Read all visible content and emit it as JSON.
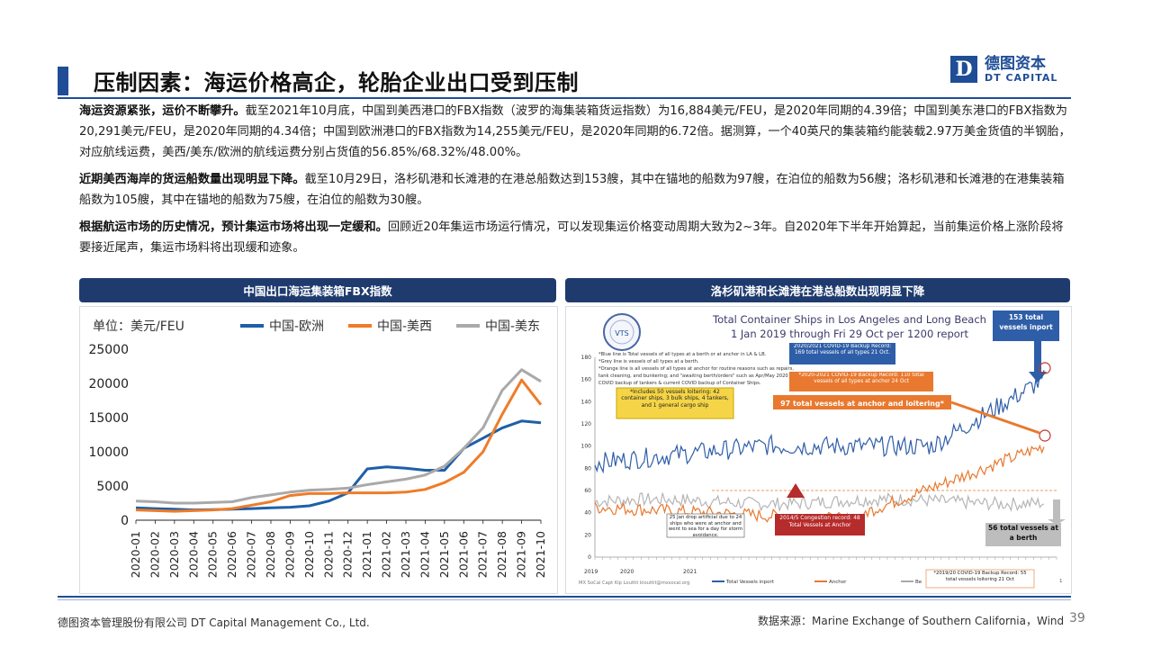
{
  "title": "压制因素：海运价格高企，轮胎企业出口受到压制",
  "logo": {
    "mark": "D",
    "cn": "德图资本",
    "en": "DT CAPITAL"
  },
  "paragraphs": [
    {
      "lead": "海运资源紧张，运价不断攀升。",
      "text": "截至2021年10月底，中国到美西港口的FBX指数（波罗的海集装箱货运指数）为16,884美元/FEU，是2020年同期的4.39倍；中国到美东港口的FBX指数为20,291美元/FEU，是2020年同期的4.34倍；中国到欧洲港口的FBX指数为14,255美元/FEU，是2020年同期的6.72倍。据测算，一个40英尺的集装箱约能装载2.97万美金货值的半钢胎，对应航线运费，美西/美东/欧洲的航线运费分别占货值的56.85%/68.32%/48.00%。"
    },
    {
      "lead": "近期美西海岸的货运船数量出现明显下降。",
      "text": "截至10月29日，洛杉矶港和长滩港的在港总船数达到153艘，其中在锚地的船数为97艘，在泊位的船数为56艘；洛杉矶港和长滩港的在港集装箱船数为105艘，其中在锚地的船数为75艘，在泊位的船数为30艘。"
    },
    {
      "lead": "根据航运市场的历史情况，预计集运市场将出现一定缓和。",
      "text": "回顾近20年集运市场运行情况，可以发现集运价格变动周期大致为2~3年。自2020年下半年开始算起，当前集运价格上涨阶段将要接近尾声，集运市场料将出现缓和迹象。"
    }
  ],
  "left_panel_title": "中国出口海运集装箱FBX指数",
  "right_panel_title": "洛杉矶港和长滩港在港总船数出现明显下降",
  "chart_data": {
    "type": "line",
    "unit_label": "单位：美元/FEU",
    "categories": [
      "2020-01",
      "2020-02",
      "2020-03",
      "2020-04",
      "2020-05",
      "2020-06",
      "2020-07",
      "2020-08",
      "2020-09",
      "2020-10",
      "2020-11",
      "2020-12",
      "2021-01",
      "2021-02",
      "2021-03",
      "2021-04",
      "2021-05",
      "2021-06",
      "2021-07",
      "2021-08",
      "2021-09",
      "2021-10"
    ],
    "ylim": [
      0,
      25000
    ],
    "yticks": [
      "0",
      "5000",
      "10000",
      "15000",
      "20000",
      "25000"
    ],
    "series": [
      {
        "name": "中国-欧洲",
        "color": "#1f5fa8",
        "values": [
          1800,
          1700,
          1600,
          1500,
          1550,
          1600,
          1700,
          1800,
          1900,
          2100,
          2800,
          4000,
          7500,
          7800,
          7600,
          7300,
          7300,
          10500,
          12000,
          13500,
          14500,
          14255
        ]
      },
      {
        "name": "中国-美西",
        "color": "#ef7c28",
        "values": [
          1500,
          1400,
          1300,
          1400,
          1500,
          1700,
          2200,
          2700,
          3600,
          3900,
          3900,
          4000,
          4000,
          4000,
          4100,
          4500,
          5500,
          7000,
          10000,
          15500,
          20500,
          16884
        ]
      },
      {
        "name": "中国-美东",
        "color": "#a9a9a9",
        "values": [
          2800,
          2700,
          2500,
          2500,
          2600,
          2700,
          3300,
          3700,
          4100,
          4400,
          4500,
          4700,
          5200,
          5600,
          6000,
          6600,
          7900,
          10500,
          13500,
          19000,
          22000,
          20291
        ]
      }
    ]
  },
  "right_chart": {
    "title_line1": "Total Container Ships in Los Angeles and Long Beach",
    "title_line2": "1 Jan 2019 through Fri 29 Oct per 1200 report",
    "yticks": [
      "0",
      "20",
      "40",
      "60",
      "80",
      "100",
      "120",
      "140",
      "160",
      "180"
    ],
    "notes_line1": "*Blue line is Total vessels of all types at a berth or at anchor in LA & LB.",
    "notes_line2": "*Grey line is vessels of all types at a berth.",
    "notes_line3": "*Orange line is all vessels of all types at anchor for routine reasons such as repairs,",
    "notes_line4": "tank cleaning, and bunkering; and \"awaiting berth/orders\" such as Apr/May 2020",
    "notes_line5": "COVID backup of tankers & current COVID backup of Container Ships.",
    "callout_blue": "153 total vessels inport",
    "callout_record1": "2020/2021 COVID-19 Backup Record: 169 total vessels of all types 21 Oct.",
    "callout_record2": "*2020-2021 COVID-19 Backup Record: 110 total vessels of all types at anchor 24 Oct",
    "callout_loiter": "*Includes 50 vessels loitering: 42 container ships, 3 bulk ships, 4 tankers, and 1 general cargo ship",
    "callout_anchor": "97 total vessels at anchor and loitering*",
    "callout_storm": "25 Jan drop artificial due to 24 ships who were at anchor and went to sea for a day for storm avoidance.",
    "callout_congestion": "2014/5 Congestion record: 48 Total Vessels at Anchor",
    "callout_berth": "56 total vessels at a berth",
    "callout_backup2019": "*2019/20 COVID-19 Backup Record: 55 total vessels loitering 21 Oct",
    "year_2019": "2019",
    "year_2020": "2020",
    "year_2021": "2021",
    "legend_inport": "Total Vessels inport",
    "legend_anchor": "Anchor",
    "legend_berth": "Be",
    "credit": "MX SoCal Capt Kip Louttit  klouttit@mxsocal.org",
    "seal_text": "VTS",
    "page_mark": "1"
  },
  "footer_left": "德图资本管理股份有限公司  DT Capital Management Co., Ltd.",
  "footer_right": "数据来源：Marine Exchange of Southern California，Wind",
  "page_number": "39"
}
